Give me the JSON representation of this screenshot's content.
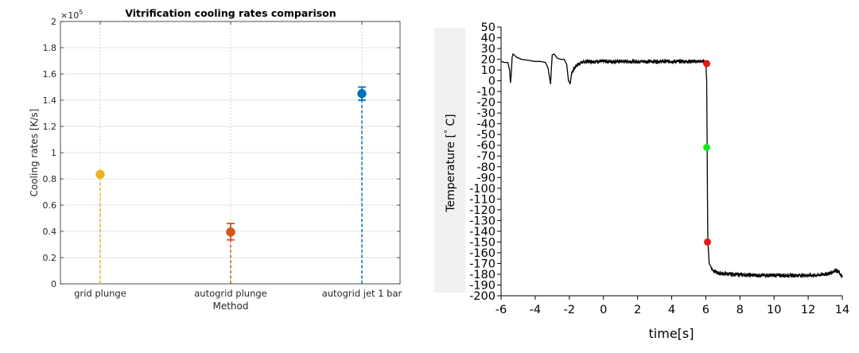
{
  "chart_data": [
    {
      "type": "scatter",
      "title": "Vitrification cooling rates comparison",
      "xlabel": "Method",
      "ylabel": "Cooling rates [K/s]",
      "y_exponent_label": "×10",
      "y_exponent_power": "5",
      "categories": [
        "grid plunge",
        "autogrid plunge",
        "autogrid jet 1 bar"
      ],
      "values": [
        0.835,
        0.395,
        1.45
      ],
      "error_low": [
        0.835,
        0.335,
        1.4
      ],
      "error_high": [
        0.835,
        0.46,
        1.5
      ],
      "colors": [
        "#EDB120",
        "#D95319",
        "#0072BD"
      ],
      "ylim": [
        0,
        2
      ],
      "yticks": [
        0,
        0.2,
        0.4,
        0.6,
        0.8,
        1,
        1.2,
        1.4,
        1.6,
        1.8,
        2
      ],
      "ytick_labels": [
        "0",
        "0.2",
        "0.4",
        "0.6",
        "0.8",
        "1",
        "1.2",
        "1.4",
        "1.6",
        "1.8",
        "2"
      ],
      "grid": true
    },
    {
      "type": "line",
      "xlabel": "time[s]",
      "ylabel": "Temperature [°C]",
      "ylabel_parts": [
        "Temperature [",
        "°",
        " C]"
      ],
      "xlim": [
        -6,
        14
      ],
      "ylim": [
        -200,
        50
      ],
      "xticks": [
        -6,
        -4,
        -2,
        0,
        2,
        4,
        6,
        8,
        10,
        12,
        14
      ],
      "yticks": [
        50,
        40,
        30,
        20,
        10,
        0,
        -10,
        -20,
        -30,
        -40,
        -50,
        -60,
        -70,
        -80,
        -90,
        -100,
        -110,
        -120,
        -130,
        -140,
        -150,
        -160,
        -170,
        -180,
        -190,
        -200
      ],
      "line_color": "#000000",
      "trace": [
        [
          -6.0,
          18
        ],
        [
          -5.8,
          17
        ],
        [
          -5.6,
          17
        ],
        [
          -5.5,
          10
        ],
        [
          -5.45,
          -2
        ],
        [
          -5.4,
          8
        ],
        [
          -5.35,
          22
        ],
        [
          -5.3,
          25
        ],
        [
          -5.1,
          22
        ],
        [
          -4.8,
          20
        ],
        [
          -4.4,
          19
        ],
        [
          -4.0,
          18
        ],
        [
          -3.7,
          18
        ],
        [
          -3.4,
          17
        ],
        [
          -3.25,
          12
        ],
        [
          -3.15,
          2
        ],
        [
          -3.1,
          -3
        ],
        [
          -3.05,
          12
        ],
        [
          -3.0,
          24
        ],
        [
          -2.9,
          25
        ],
        [
          -2.7,
          21
        ],
        [
          -2.5,
          20
        ],
        [
          -2.3,
          20
        ],
        [
          -2.15,
          15
        ],
        [
          -2.05,
          0
        ],
        [
          -1.95,
          -2
        ],
        [
          -1.85,
          8
        ],
        [
          -1.6,
          14
        ],
        [
          -1.3,
          17
        ],
        [
          -1.0,
          18
        ],
        [
          0.0,
          18
        ],
        [
          1.0,
          18
        ],
        [
          2.0,
          18
        ],
        [
          3.0,
          18
        ],
        [
          4.0,
          18
        ],
        [
          5.0,
          18
        ],
        [
          5.9,
          18
        ],
        [
          6.0,
          17
        ],
        [
          6.05,
          0
        ],
        [
          6.08,
          -60
        ],
        [
          6.1,
          -110
        ],
        [
          6.12,
          -150
        ],
        [
          6.2,
          -170
        ],
        [
          6.4,
          -176
        ],
        [
          6.7,
          -179
        ],
        [
          7.5,
          -180
        ],
        [
          9.0,
          -181
        ],
        [
          11.0,
          -181
        ],
        [
          12.5,
          -181
        ],
        [
          13.3,
          -179
        ],
        [
          13.6,
          -176
        ],
        [
          13.8,
          -178
        ],
        [
          14.0,
          -183
        ]
      ],
      "noisy_spans": [
        [
          -2.0,
          6.0
        ],
        [
          6.3,
          14.0
        ]
      ],
      "points": [
        {
          "x": 6.05,
          "y": 16,
          "color": "#E8171A"
        },
        {
          "x": 6.05,
          "y": -62,
          "color": "#19E81F"
        },
        {
          "x": 6.1,
          "y": -150,
          "color": "#E8171A"
        }
      ]
    }
  ]
}
